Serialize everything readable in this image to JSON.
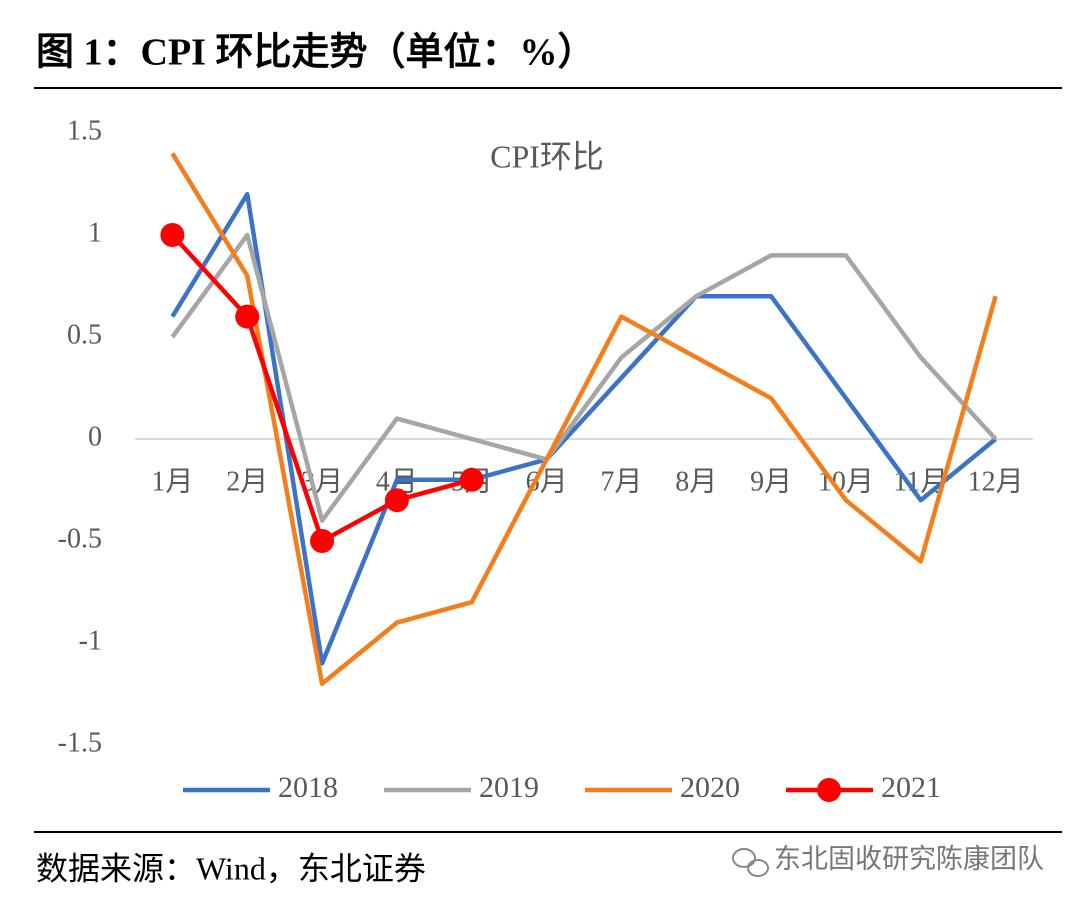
{
  "header": {
    "title": "图 1：CPI 环比走势（单位：%）"
  },
  "chart_data": {
    "type": "line",
    "title": "CPI环比",
    "categories": [
      "1月",
      "2月",
      "3月",
      "4月",
      "5月",
      "6月",
      "7月",
      "8月",
      "9月",
      "10月",
      "11月",
      "12月"
    ],
    "series": [
      {
        "name": "2018",
        "color": "#3b74c6",
        "values": [
          0.6,
          1.2,
          -1.1,
          -0.2,
          -0.2,
          -0.1,
          0.3,
          0.7,
          0.7,
          0.2,
          -0.3,
          0.0
        ]
      },
      {
        "name": "2019",
        "color": "#a6a6a6",
        "values": [
          0.5,
          1.0,
          -0.4,
          0.1,
          0.0,
          -0.1,
          0.4,
          0.7,
          0.9,
          0.9,
          0.4,
          0.0
        ]
      },
      {
        "name": "2020",
        "color": "#f47e1c",
        "values": [
          1.4,
          0.8,
          -1.2,
          -0.9,
          -0.8,
          -0.1,
          0.6,
          0.4,
          0.2,
          -0.3,
          -0.6,
          0.7
        ]
      },
      {
        "name": "2021",
        "color": "#ff0000",
        "marker": true,
        "values": [
          1.0,
          0.6,
          -0.5,
          -0.3,
          -0.2,
          null,
          null,
          null,
          null,
          null,
          null,
          null
        ]
      }
    ],
    "ylim": [
      -1.5,
      1.5
    ],
    "yticks": [
      1.5,
      1,
      0.5,
      0,
      -0.5,
      -1,
      -1.5
    ],
    "grid": false,
    "legend": "bottom"
  },
  "footer": {
    "source": "数据来源：Wind，东北证券",
    "watermark": "东北固收研究陈康团队"
  }
}
